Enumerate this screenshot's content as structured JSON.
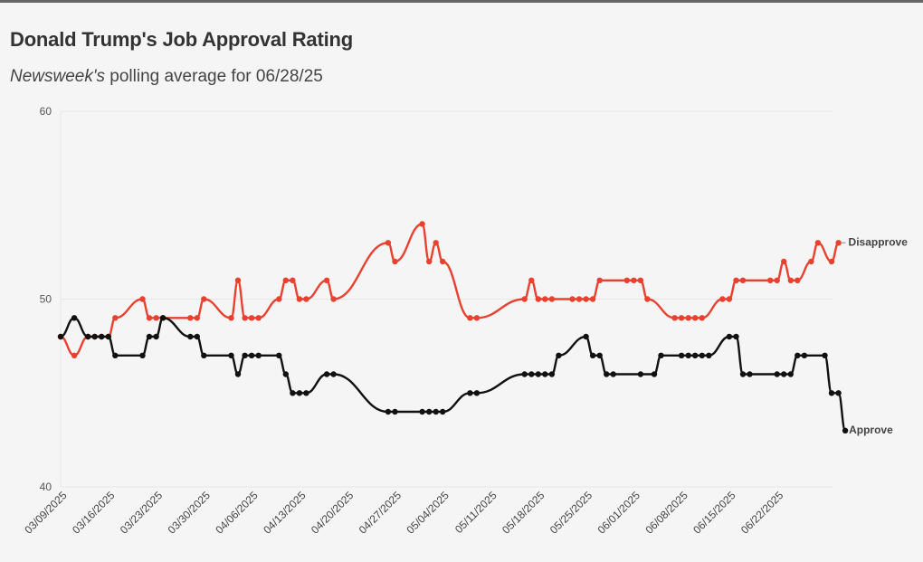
{
  "header": {
    "title": "Donald Trump's Job Approval Rating",
    "subtitle_publication": "Newsweek's",
    "subtitle_rest": " polling average for 06/28/25"
  },
  "colors": {
    "approve": "#111111",
    "disapprove": "#e8412f",
    "grid": "#e6e6e6",
    "background": "#f5f5f5"
  },
  "chart_data": {
    "type": "line",
    "title": "Donald Trump's Job Approval Rating",
    "xlabel": "",
    "ylabel": "",
    "x_range": [
      "2025-03-08",
      "2025-06-28"
    ],
    "ylim": [
      40,
      60
    ],
    "yticks": [
      40,
      50,
      60
    ],
    "xticks": [
      "03/09/2025",
      "03/16/2025",
      "03/23/2025",
      "03/30/2025",
      "04/06/2025",
      "04/13/2025",
      "04/20/2025",
      "04/27/2025",
      "05/04/2025",
      "05/11/2025",
      "05/18/2025",
      "05/25/2025",
      "06/01/2025",
      "06/08/2025",
      "06/15/2025",
      "06/22/2025"
    ],
    "grid": true,
    "legend": "direct labels at line ends",
    "series": [
      {
        "name": "Disapprove",
        "color": "#e8412f",
        "points": [
          [
            "2025-03-08",
            48
          ],
          [
            "2025-03-10",
            47
          ],
          [
            "2025-03-12",
            48
          ],
          [
            "2025-03-13",
            48
          ],
          [
            "2025-03-14",
            48
          ],
          [
            "2025-03-15",
            48
          ],
          [
            "2025-03-16",
            49
          ],
          [
            "2025-03-20",
            50
          ],
          [
            "2025-03-21",
            49
          ],
          [
            "2025-03-22",
            49
          ],
          [
            "2025-03-23",
            49
          ],
          [
            "2025-03-27",
            49
          ],
          [
            "2025-03-28",
            49
          ],
          [
            "2025-03-29",
            50
          ],
          [
            "2025-04-02",
            49
          ],
          [
            "2025-04-03",
            51
          ],
          [
            "2025-04-04",
            49
          ],
          [
            "2025-04-05",
            49
          ],
          [
            "2025-04-06",
            49
          ],
          [
            "2025-04-09",
            50
          ],
          [
            "2025-04-10",
            51
          ],
          [
            "2025-04-11",
            51
          ],
          [
            "2025-04-12",
            50
          ],
          [
            "2025-04-13",
            50
          ],
          [
            "2025-04-16",
            51
          ],
          [
            "2025-04-17",
            50
          ],
          [
            "2025-04-25",
            53
          ],
          [
            "2025-04-26",
            52
          ],
          [
            "2025-04-30",
            54
          ],
          [
            "2025-05-01",
            52
          ],
          [
            "2025-05-02",
            53
          ],
          [
            "2025-05-03",
            52
          ],
          [
            "2025-05-07",
            49
          ],
          [
            "2025-05-08",
            49
          ],
          [
            "2025-05-15",
            50
          ],
          [
            "2025-05-16",
            51
          ],
          [
            "2025-05-17",
            50
          ],
          [
            "2025-05-18",
            50
          ],
          [
            "2025-05-19",
            50
          ],
          [
            "2025-05-22",
            50
          ],
          [
            "2025-05-23",
            50
          ],
          [
            "2025-05-24",
            50
          ],
          [
            "2025-05-25",
            50
          ],
          [
            "2025-05-26",
            51
          ],
          [
            "2025-05-30",
            51
          ],
          [
            "2025-05-31",
            51
          ],
          [
            "2025-06-01",
            51
          ],
          [
            "2025-06-02",
            50
          ],
          [
            "2025-06-06",
            49
          ],
          [
            "2025-06-07",
            49
          ],
          [
            "2025-06-08",
            49
          ],
          [
            "2025-06-09",
            49
          ],
          [
            "2025-06-10",
            49
          ],
          [
            "2025-06-13",
            50
          ],
          [
            "2025-06-14",
            50
          ],
          [
            "2025-06-15",
            51
          ],
          [
            "2025-06-16",
            51
          ],
          [
            "2025-06-20",
            51
          ],
          [
            "2025-06-21",
            51
          ],
          [
            "2025-06-22",
            52
          ],
          [
            "2025-06-23",
            51
          ],
          [
            "2025-06-24",
            51
          ],
          [
            "2025-06-26",
            52
          ],
          [
            "2025-06-27",
            53
          ],
          [
            "2025-06-29",
            52
          ],
          [
            "2025-06-30",
            53
          ]
        ]
      },
      {
        "name": "Approve",
        "color": "#111111",
        "points": [
          [
            "2025-03-08",
            48
          ],
          [
            "2025-03-10",
            49
          ],
          [
            "2025-03-12",
            48
          ],
          [
            "2025-03-13",
            48
          ],
          [
            "2025-03-14",
            48
          ],
          [
            "2025-03-15",
            48
          ],
          [
            "2025-03-16",
            47
          ],
          [
            "2025-03-20",
            47
          ],
          [
            "2025-03-21",
            48
          ],
          [
            "2025-03-22",
            48
          ],
          [
            "2025-03-23",
            49
          ],
          [
            "2025-03-27",
            48
          ],
          [
            "2025-03-28",
            48
          ],
          [
            "2025-03-29",
            47
          ],
          [
            "2025-04-02",
            47
          ],
          [
            "2025-04-03",
            46
          ],
          [
            "2025-04-04",
            47
          ],
          [
            "2025-04-05",
            47
          ],
          [
            "2025-04-06",
            47
          ],
          [
            "2025-04-09",
            47
          ],
          [
            "2025-04-10",
            46
          ],
          [
            "2025-04-11",
            45
          ],
          [
            "2025-04-12",
            45
          ],
          [
            "2025-04-13",
            45
          ],
          [
            "2025-04-16",
            46
          ],
          [
            "2025-04-17",
            46
          ],
          [
            "2025-04-25",
            44
          ],
          [
            "2025-04-26",
            44
          ],
          [
            "2025-04-30",
            44
          ],
          [
            "2025-05-01",
            44
          ],
          [
            "2025-05-02",
            44
          ],
          [
            "2025-05-03",
            44
          ],
          [
            "2025-05-07",
            45
          ],
          [
            "2025-05-08",
            45
          ],
          [
            "2025-05-15",
            46
          ],
          [
            "2025-05-16",
            46
          ],
          [
            "2025-05-17",
            46
          ],
          [
            "2025-05-18",
            46
          ],
          [
            "2025-05-19",
            46
          ],
          [
            "2025-05-20",
            47
          ],
          [
            "2025-05-24",
            48
          ],
          [
            "2025-05-25",
            47
          ],
          [
            "2025-05-26",
            47
          ],
          [
            "2025-05-27",
            46
          ],
          [
            "2025-05-28",
            46
          ],
          [
            "2025-06-01",
            46
          ],
          [
            "2025-06-03",
            46
          ],
          [
            "2025-06-04",
            47
          ],
          [
            "2025-06-07",
            47
          ],
          [
            "2025-06-08",
            47
          ],
          [
            "2025-06-09",
            47
          ],
          [
            "2025-06-10",
            47
          ],
          [
            "2025-06-11",
            47
          ],
          [
            "2025-06-14",
            48
          ],
          [
            "2025-06-15",
            48
          ],
          [
            "2025-06-16",
            46
          ],
          [
            "2025-06-17",
            46
          ],
          [
            "2025-06-21",
            46
          ],
          [
            "2025-06-22",
            46
          ],
          [
            "2025-06-23",
            46
          ],
          [
            "2025-06-24",
            47
          ],
          [
            "2025-06-25",
            47
          ],
          [
            "2025-06-28",
            47
          ],
          [
            "2025-06-29",
            45
          ],
          [
            "2025-06-30",
            45
          ],
          [
            "2025-07-01",
            43
          ]
        ]
      }
    ]
  }
}
